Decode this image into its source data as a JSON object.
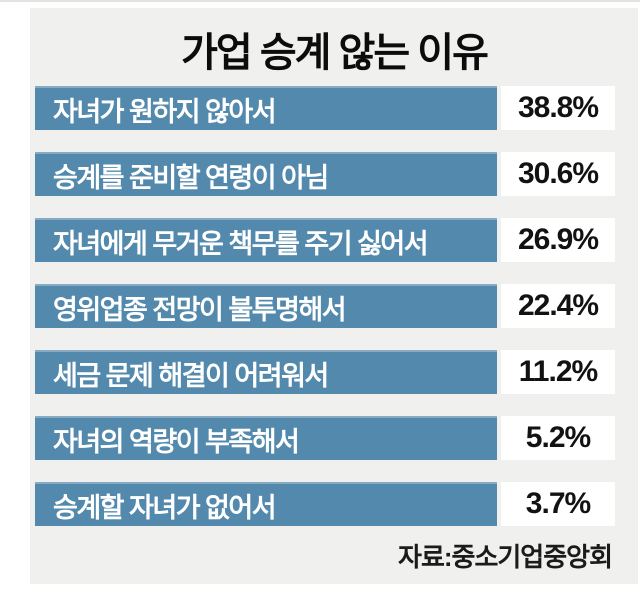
{
  "chart": {
    "title": "가업 승계 않는 이유",
    "source": "자료:중소기업중앙회"
  },
  "rows": [
    {
      "label": "자녀가 원하지 않아서",
      "value": "38.8%"
    },
    {
      "label": "승계를 준비할 연령이 아님",
      "value": "30.6%"
    },
    {
      "label": "자녀에게 무거운 책무를 주기 싫어서",
      "value": "26.9%"
    },
    {
      "label": "영위업종 전망이 불투명해서",
      "value": "22.4%"
    },
    {
      "label": "세금 문제 해결이 어려워서",
      "value": "11.2%"
    },
    {
      "label": "자녀의 역량이 부족해서",
      "value": "5.2%"
    },
    {
      "label": "승계할 자녀가 없어서",
      "value": "3.7%"
    }
  ],
  "chart_data": {
    "type": "bar",
    "orientation": "horizontal",
    "bar_style": "equal-width-label-list",
    "title": "가업 승계 않는 이유",
    "categories": [
      "자녀가 원하지 않아서",
      "승계를 준비할 연령이 아님",
      "자녀에게 무거운 책무를 주기 싫어서",
      "영위업종 전망이 불투명해서",
      "세금 문제 해결이 어려워서",
      "자녀의 역량이 부족해서",
      "승계할 자녀가 없어서"
    ],
    "values": [
      38.8,
      30.6,
      26.9,
      22.4,
      11.2,
      5.2,
      3.7
    ],
    "value_labels": [
      "38.8%",
      "30.6%",
      "26.9%",
      "22.4%",
      "11.2%",
      "5.2%",
      "3.7%"
    ],
    "unit": "%",
    "xlabel": "",
    "ylabel": "",
    "legend": false,
    "grid": false,
    "source": "자료:중소기업중앙회",
    "colors": {
      "bar": "#5289ac",
      "bar_top_highlight": "#87abc2",
      "panel_background": "#f0f0ee",
      "value_box_background": "#ffffff",
      "bar_label_text": "#ffffff",
      "value_text": "#121212",
      "title_text": "#0c0c0c"
    }
  }
}
